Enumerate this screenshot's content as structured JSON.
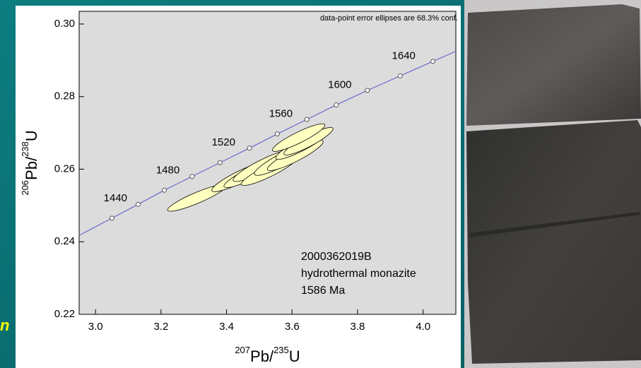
{
  "chart_data": {
    "type": "concordia",
    "note": "data-point error ellipses are 68.3% conf.",
    "sample_lines": [
      "2000362019B",
      "hydrothermal monazite",
      "1586 Ma"
    ],
    "xlabel": [
      {
        "text": "207",
        "sup": true
      },
      {
        "text": "Pb/",
        "sup": false
      },
      {
        "text": "235",
        "sup": true
      },
      {
        "text": "U",
        "sup": false
      }
    ],
    "ylabel": [
      {
        "text": "206",
        "sup": true
      },
      {
        "text": "Pb/",
        "sup": false
      },
      {
        "text": "238",
        "sup": true
      },
      {
        "text": "U",
        "sup": false
      }
    ],
    "left_fragment": "n",
    "xlim": [
      2.95,
      4.1
    ],
    "ylim": [
      0.22,
      0.3035
    ],
    "xticks": [
      {
        "value": 3.0,
        "label": "3.0"
      },
      3.2,
      3.4,
      3.6,
      3.8,
      {
        "value": 4.0,
        "label": "4.0"
      }
    ],
    "yticks": [
      0.22,
      0.24,
      0.26,
      0.28,
      {
        "value": 0.3,
        "label": "0.30"
      }
    ],
    "concordia": {
      "color": "#6a6ad0",
      "x": [
        3.05,
        3.13,
        3.21,
        3.295,
        3.38,
        3.47,
        3.555,
        3.645,
        3.735,
        3.83,
        3.93,
        4.03
      ],
      "y": [
        0.2465,
        0.2503,
        0.2542,
        0.258,
        0.2618,
        0.2658,
        0.2697,
        0.2737,
        0.2777,
        0.2817,
        0.2857,
        0.2897
      ],
      "age_labels": [
        "1440",
        null,
        "1480",
        null,
        "1520",
        null,
        "1560",
        null,
        "1600",
        null,
        "1640",
        null
      ]
    },
    "ellipses": {
      "color": "#ffffc0",
      "rho": 0.9,
      "x": [
        3.31,
        3.445,
        3.477,
        3.51,
        3.53,
        3.575,
        3.61,
        3.63,
        3.65,
        3.62
      ],
      "y": [
        0.2521,
        0.258,
        0.2589,
        0.2609,
        0.2595,
        0.2628,
        0.2638,
        0.2667,
        0.2677,
        0.2687
      ],
      "x_err": [
        0.09,
        0.09,
        0.085,
        0.09,
        0.085,
        0.09,
        0.085,
        0.08,
        0.075,
        0.08
      ],
      "y_err": [
        0.0037,
        0.0042,
        0.004,
        0.0043,
        0.004,
        0.0045,
        0.0042,
        0.004,
        0.0038,
        0.0038
      ]
    }
  }
}
